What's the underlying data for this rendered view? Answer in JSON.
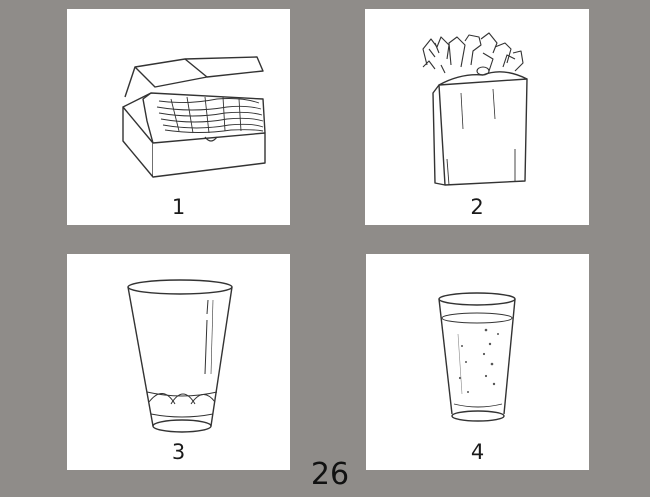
{
  "cards": [
    {
      "number": "1",
      "icon": "box-of-pasta-icon"
    },
    {
      "number": "2",
      "icon": "grocery-bag-icon"
    },
    {
      "number": "3",
      "icon": "empty-glass-icon"
    },
    {
      "number": "4",
      "icon": "glass-of-water-icon"
    }
  ],
  "page_number": "26",
  "colors": {
    "background": "#8f8c89",
    "card": "#ffffff",
    "ink": "#333333"
  }
}
